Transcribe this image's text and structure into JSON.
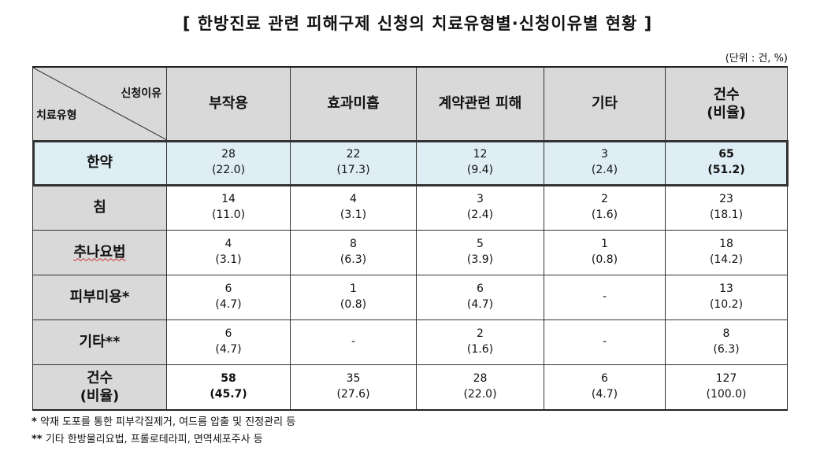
{
  "title": "[ 한방진료 관련 피해구제 신청의 치료유형별·신청이유별 현황 ]",
  "unit": "(단위 : 건, %)",
  "table": {
    "corner_top": "신청이유",
    "corner_bottom": "치료유형",
    "columns": [
      "부작용",
      "효과미흡",
      "계약관련 피해",
      "기타"
    ],
    "total_col": [
      "건수",
      "(비율)"
    ],
    "rows": [
      {
        "label": "한약",
        "cells": [
          [
            "28",
            "(22.0)"
          ],
          [
            "22",
            "(17.3)"
          ],
          [
            "12",
            "(9.4)"
          ],
          [
            "3",
            "(2.4)"
          ]
        ],
        "total": [
          "65",
          "(51.2)"
        ]
      },
      {
        "label": "침",
        "cells": [
          [
            "14",
            "(11.0)"
          ],
          [
            "4",
            "(3.1)"
          ],
          [
            "3",
            "(2.4)"
          ],
          [
            "2",
            "(1.6)"
          ]
        ],
        "total": [
          "23",
          "(18.1)"
        ]
      },
      {
        "label": "추나요법",
        "cells": [
          [
            "4",
            "(3.1)"
          ],
          [
            "8",
            "(6.3)"
          ],
          [
            "5",
            "(3.9)"
          ],
          [
            "1",
            "(0.8)"
          ]
        ],
        "total": [
          "18",
          "(14.2)"
        ]
      },
      {
        "label": "피부미용*",
        "cells": [
          [
            "6",
            "(4.7)"
          ],
          [
            "1",
            "(0.8)"
          ],
          [
            "6",
            "(4.7)"
          ],
          [
            "-",
            ""
          ]
        ],
        "total": [
          "13",
          "(10.2)"
        ]
      },
      {
        "label": "기타**",
        "cells": [
          [
            "6",
            "(4.7)"
          ],
          [
            "-",
            ""
          ],
          [
            "2",
            "(1.6)"
          ],
          [
            "-",
            ""
          ]
        ],
        "total": [
          "8",
          "(6.3)"
        ]
      }
    ],
    "total_row": {
      "label": [
        "건수",
        "(비율)"
      ],
      "cells": [
        [
          "58",
          "(45.7)"
        ],
        [
          "35",
          "(27.6)"
        ],
        [
          "28",
          "(22.0)"
        ],
        [
          "6",
          "(4.7)"
        ]
      ],
      "total": [
        "127",
        "(100.0)"
      ]
    }
  },
  "notes": [
    {
      "mark": "*",
      "text": " 약재 도포를 통한 피부각질제거, 여드름 압출 및 진정관리 등"
    },
    {
      "mark": "**",
      "text": " 기타 한방물리요법, 프롤로테라피, 면역세포주사 등"
    }
  ]
}
